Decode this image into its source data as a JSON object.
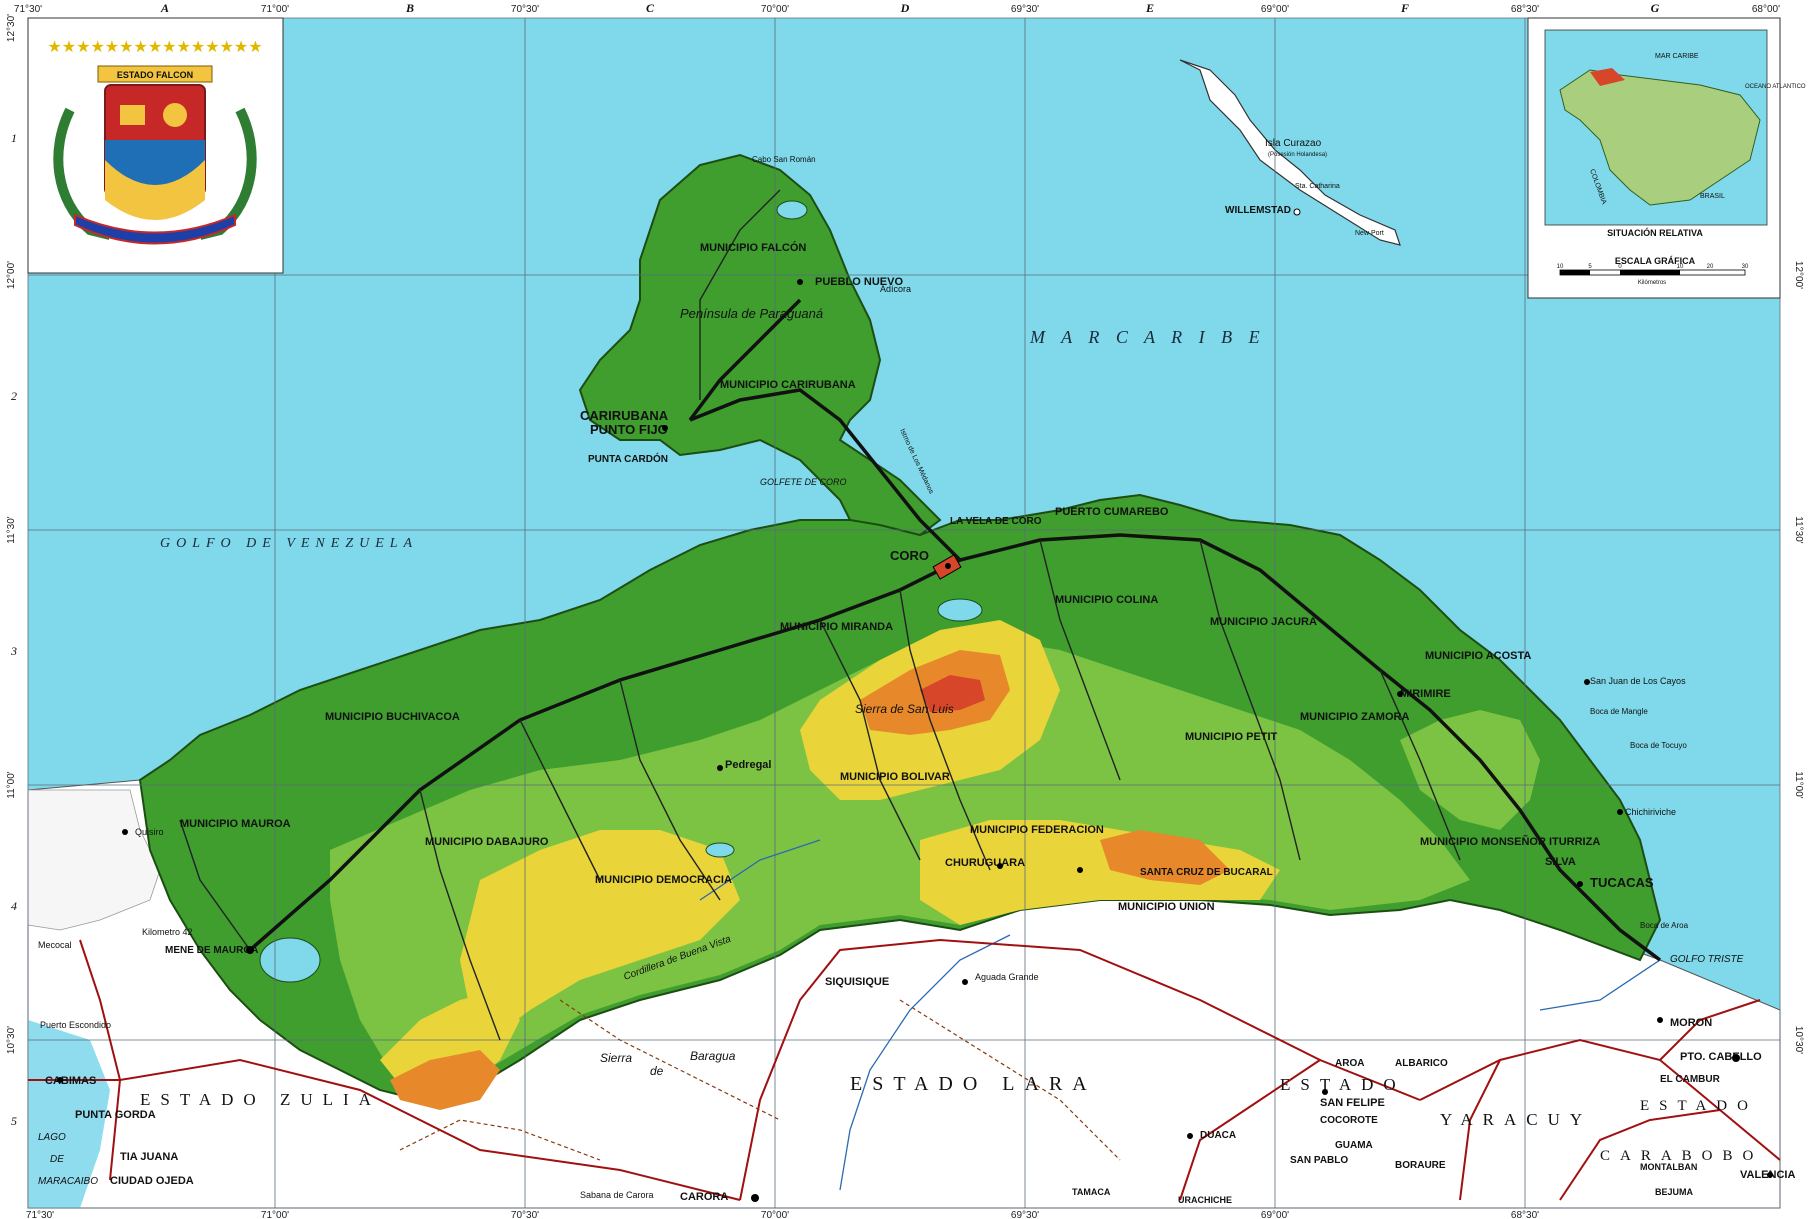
{
  "sheet_letters": [
    "A",
    "B",
    "C",
    "D",
    "E",
    "F",
    "G"
  ],
  "sheet_numbers": [
    "1",
    "2",
    "3",
    "4",
    "5"
  ],
  "longitudes": [
    "71°30'",
    "71°00'",
    "70°30'",
    "70°00'",
    "69°30'",
    "69°00'",
    "68°30'",
    "68°00'"
  ],
  "latitudes": [
    "12°30'",
    "12°00'",
    "11°30'",
    "11°00'",
    "10°30'"
  ],
  "seas": {
    "mar_caribe": "M A R   C A R I B E",
    "golfo_venezuela": "GOLFO  DE  VENEZUELA",
    "golfete_coro": "GOLFETE DE CORO",
    "golfo_triste": "GOLFO TRISTE",
    "lago_maracaibo_1": "LAGO",
    "lago_maracaibo_2": "DE",
    "lago_maracaibo_3": "MARACAIBO"
  },
  "states": {
    "zulia": "ESTADO   ZULIA",
    "lara": "ESTADO   LARA",
    "yaracuy_1": "ESTADO",
    "yaracuy_2": "YARACUY",
    "carabobo_1": "ESTADO",
    "carabobo_2": "CARABOBO"
  },
  "coat_of_arms": {
    "banner": "ESTADO FALCON"
  },
  "inset": {
    "caption": "SITUACIÓN RELATIVA",
    "scale_title": "ESCALA GRÁFICA",
    "scale_ticks": [
      "10",
      "5",
      "0",
      "10",
      "20",
      "30"
    ],
    "scale_unit": "Kilómetros",
    "sea": "MAR CARIBE",
    "colombia": "COLOMBIA",
    "brasil": "BRASIL",
    "oceano": "OCEANO ATLANTICO"
  },
  "curazao": {
    "name": "Isla Curazao",
    "sub": "(Posesión Holandesa)",
    "capital": "WILLEMSTAD",
    "sta_catharina": "Sta. Catharina",
    "new_port": "New Port"
  },
  "cities": {
    "coro": "CORO",
    "la_vela": "LA VELA DE CORO",
    "punto_fijo": "PUNTO FIJO",
    "carirubana": "CARIRUBANA",
    "punta_cardon": "PUNTA CARDÓN",
    "puerto_cumarebo": "PUERTO CUMAREBO",
    "tucacas": "TUCACAS",
    "chichiriviche": "Chichiriviche",
    "mene_mauroa": "MENE DE MAUROA",
    "churuguara": "CHURUGUARA",
    "santa_cruz_bucaral": "SANTA CRUZ DE BUCARAL",
    "pedregal": "Pedregal",
    "mirimire": "MIRIMIRE",
    "pueblo_nuevo": "PUEBLO NUEVO",
    "adicora": "Adícora",
    "moron": "MORON",
    "pto_cabello": "PTO. CABELLO",
    "cabimas": "CABIMAS",
    "tia_juana": "TIA JUANA",
    "punta_gorda": "PUNTA GORDA",
    "ciudad_ojeda": "CIUDAD OJEDA",
    "carora": "CARORA",
    "siquisique": "SIQUISIQUE",
    "duaca": "DUACA",
    "san_felipe": "SAN FELIPE",
    "valencia": "VALENCIA",
    "aroa": "AROA",
    "tamaca": "TAMACA",
    "urachiche": "URACHICHE",
    "cocorote": "COCOROTE",
    "san_pablo": "SAN PABLO",
    "guama": "GUAMA",
    "boraure": "BORAURE",
    "albarico": "ALBARICO",
    "el_cambur": "EL CAMBUR",
    "quisiro": "Quisiro",
    "kilometro": "Kilometro 42",
    "mecocal": "Mecocal",
    "puerto_escondido": "Puerto Escondido",
    "aguada_grande": "Aguada Grande",
    "montalban": "MONTALBAN",
    "bejuma": "BEJUMA",
    "yaritagua": "Sabana de Carora"
  },
  "municipios": {
    "falcon": "MUNICIPIO FALCÓN",
    "carirubana": "MUNICIPIO CARIRUBANA",
    "miranda": "MUNICIPIO MIRANDA",
    "buchivacoa": "MUNICIPIO BUCHIVACOA",
    "mauroa": "MUNICIPIO MAUROA",
    "dabajuro": "MUNICIPIO DABAJURO",
    "democracia": "MUNICIPIO DEMOCRACIA",
    "bolivar": "MUNICIPIO BOLIVAR",
    "federacion": "MUNICIPIO FEDERACION",
    "petit": "MUNICIPIO PETIT",
    "jacura": "MUNICIPIO JACURA",
    "union": "MUNICIPIO UNION",
    "acosta": "MUNICIPIO ACOSTA",
    "monsenor": "MUNICIPIO MONSEÑOR ITURRIZA",
    "silva": "SILVA",
    "colina": "MUNICIPIO COLINA",
    "zamora": "MUNICIPIO ZAMORA"
  },
  "features": {
    "paraguana": "Península de Paraguaná",
    "cabo_san_roman": "Cabo San Román",
    "sierra_san_luis": "Sierra de San Luis",
    "sierra_baragua_1": "Sierra",
    "sierra_baragua_2": "de",
    "sierra_baragua_3": "Baragua",
    "cordillera": "Cordillera de Buena Vista",
    "istmo": "Istmo de Los Médanos",
    "san_juan_cayos": "San Juan de Los Cayos",
    "boca_mangle": "Boca de Mangle",
    "boca_tocuyo": "Boca de Tocuyo",
    "boca_aroa": "Boca de Aroa"
  },
  "colors": {
    "sea": "#7fd9ea",
    "lowland": "#3f9e2e",
    "mid": "#7cc243",
    "upper": "#e9d53a",
    "high": "#e7892a",
    "peak": "#d8462a",
    "outside": "#ffffff",
    "road": "#a01010"
  }
}
